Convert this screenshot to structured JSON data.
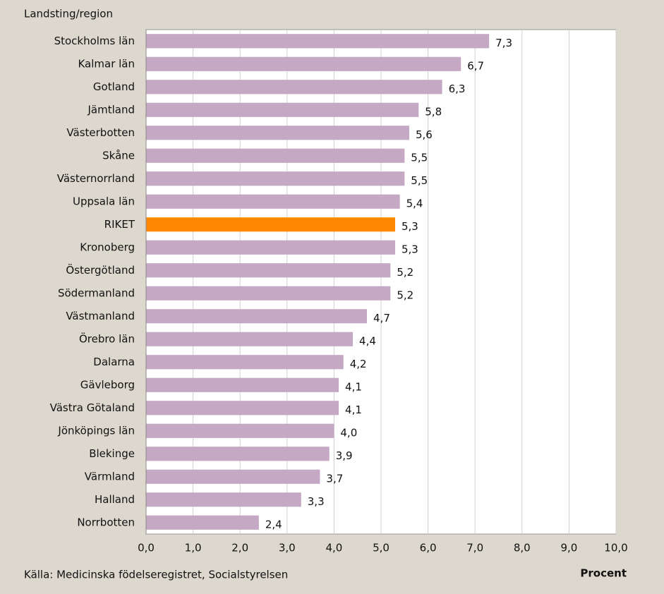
{
  "chart_data": {
    "type": "barh",
    "y_axis_label": "Landsting/region",
    "x_axis_label": "Procent",
    "source": "Källa: Medicinska födelseregistret, Socialstyrelsen",
    "categories": [
      "Stockholms län",
      "Kalmar län",
      "Gotland",
      "Jämtland",
      "Västerbotten",
      "Skåne",
      "Västernorrland",
      "Uppsala län",
      "RIKET",
      "Kronoberg",
      "Östergötland",
      "Södermanland",
      "Västmanland",
      "Örebro län",
      "Dalarna",
      "Gävleborg",
      "Västra Götaland",
      "Jönköpings län",
      "Blekinge",
      "Värmland",
      "Halland",
      "Norrbotten"
    ],
    "values": [
      7.3,
      6.7,
      6.3,
      5.8,
      5.6,
      5.5,
      5.5,
      5.4,
      5.3,
      5.3,
      5.2,
      5.2,
      4.7,
      4.4,
      4.2,
      4.1,
      4.1,
      4.0,
      3.9,
      3.7,
      3.3,
      2.4
    ],
    "value_labels": [
      "7,3",
      "6,7",
      "6,3",
      "5,8",
      "5,6",
      "5,5",
      "5,5",
      "5,4",
      "5,3",
      "5,3",
      "5,2",
      "5,2",
      "4,7",
      "4,4",
      "4,2",
      "4,1",
      "4,1",
      "4,0",
      "3,9",
      "3,7",
      "3,3",
      "2,4"
    ],
    "colors": [
      "#c4a8c4",
      "#c4a8c4",
      "#c4a8c4",
      "#c4a8c4",
      "#c4a8c4",
      "#c4a8c4",
      "#c4a8c4",
      "#c4a8c4",
      "#ff8800",
      "#c4a8c4",
      "#c4a8c4",
      "#c4a8c4",
      "#c4a8c4",
      "#c4a8c4",
      "#c4a8c4",
      "#c4a8c4",
      "#c4a8c4",
      "#c4a8c4",
      "#c4a8c4",
      "#c4a8c4",
      "#c4a8c4",
      "#c4a8c4"
    ],
    "xlim": [
      0,
      10
    ],
    "xticks": [
      {
        "value": 0,
        "label": "0,0"
      },
      {
        "value": 1,
        "label": "1,0"
      },
      {
        "value": 2,
        "label": "2,0"
      },
      {
        "value": 3,
        "label": "3,0"
      },
      {
        "value": 4,
        "label": "4,0"
      },
      {
        "value": 5,
        "label": "5,0"
      },
      {
        "value": 6,
        "label": "6,0"
      },
      {
        "value": 7,
        "label": "7,0"
      },
      {
        "value": 8,
        "label": "8,0"
      },
      {
        "value": 9,
        "label": "9,0"
      },
      {
        "value": 10,
        "label": "10,0"
      }
    ],
    "grid": true
  }
}
